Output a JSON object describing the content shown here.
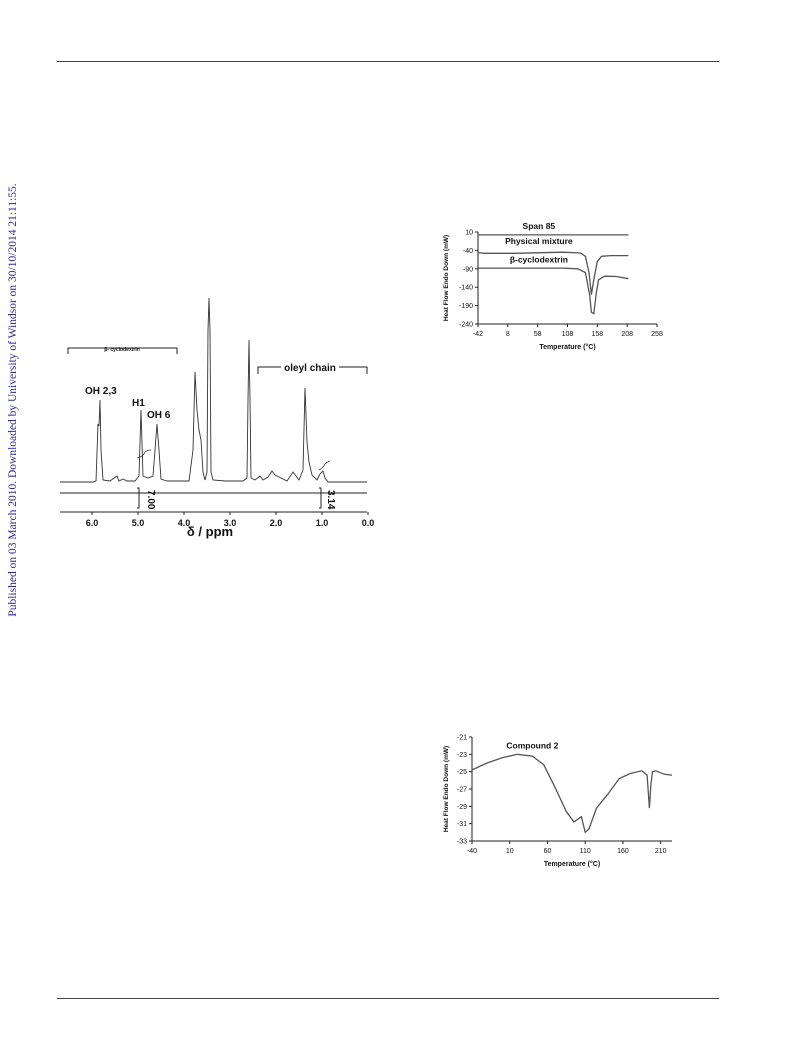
{
  "side_note": "Published on 03 March 2010. Downloaded by University of Windsor on 30/10/2014 21:11:55.",
  "nmr": {
    "xlabel": "δ / ppm",
    "ticks": [
      "6.0",
      "5.0",
      "4.0",
      "3.0",
      "2.0",
      "1.0",
      "0.0"
    ],
    "region_cd": "β- cyclodextrin",
    "region_oleyl": "oleyl chain",
    "peak_oh23": "OH 2,3",
    "peak_h1": "H1",
    "peak_oh6": "OH 6",
    "integral_1": "7.00",
    "integral_2": "3.14"
  },
  "chart_data": [
    {
      "type": "line",
      "title": "",
      "xlabel": "Temperature (°C)",
      "ylabel": "Heat Flow Endo Down (mW)",
      "x_ticks": [
        "-42",
        "8",
        "58",
        "108",
        "158",
        "208",
        "258"
      ],
      "y_ticks": [
        "10",
        "-40",
        "-90",
        "-140",
        "-190",
        "-240"
      ],
      "xlim": [
        -42,
        258
      ],
      "ylim": [
        -240,
        10
      ],
      "grid": false,
      "series": [
        {
          "name": "Span 85",
          "x": [
            -42,
            210
          ],
          "y": [
            2,
            2
          ]
        },
        {
          "name": "Physical mixture",
          "x": [
            -42,
            -30,
            20,
            100,
            130,
            138,
            144,
            148,
            152,
            158,
            165,
            180,
            210
          ],
          "y": [
            -46,
            -48,
            -48,
            -45,
            -47,
            -56,
            -100,
            -160,
            -120,
            -70,
            -56,
            -54,
            -54
          ]
        },
        {
          "name": "β-cyclodextrin",
          "x": [
            -42,
            20,
            100,
            125,
            138,
            145,
            148,
            152,
            156,
            160,
            170,
            190,
            210
          ],
          "y": [
            -88,
            -88,
            -88,
            -90,
            -100,
            -160,
            -208,
            -212,
            -160,
            -120,
            -110,
            -111,
            -117
          ]
        }
      ]
    },
    {
      "type": "line",
      "title": "",
      "xlabel": "Temperature (°C)",
      "ylabel": "Heat Flow Endo Down (mW)",
      "x_ticks": [
        "-40",
        "10",
        "60",
        "110",
        "160",
        "210"
      ],
      "y_ticks": [
        "-21",
        "-23",
        "-25",
        "-27",
        "-29",
        "-31",
        "-33"
      ],
      "xlim": [
        -40,
        225
      ],
      "ylim": [
        -33,
        -21
      ],
      "grid": false,
      "series": [
        {
          "name": "Compound 2",
          "x": [
            -40,
            -20,
            0,
            20,
            40,
            55,
            70,
            85,
            95,
            100,
            105,
            110,
            115,
            125,
            140,
            155,
            170,
            185,
            192,
            195,
            197,
            199,
            203,
            215,
            225
          ],
          "y": [
            -24.8,
            -24.0,
            -23.4,
            -23.0,
            -23.2,
            -24.2,
            -26.8,
            -29.6,
            -30.8,
            -30.5,
            -30.2,
            -32.0,
            -31.6,
            -29.2,
            -27.6,
            -25.8,
            -25.2,
            -24.9,
            -25.4,
            -29.2,
            -26.5,
            -25.0,
            -24.9,
            -25.3,
            -25.4
          ]
        }
      ]
    }
  ]
}
